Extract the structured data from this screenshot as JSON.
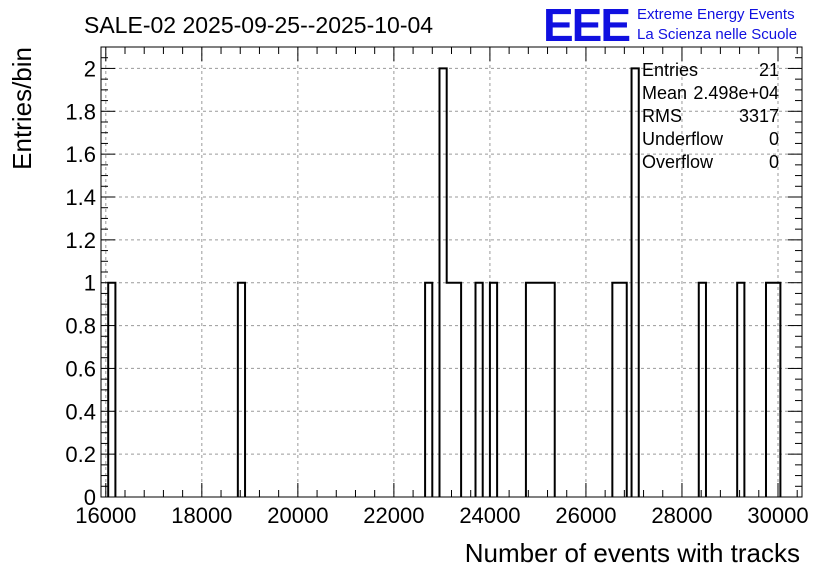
{
  "chart_data": {
    "type": "histogram",
    "title": "SALE-02 2025-09-25--2025-10-04",
    "xlabel": "Number of events with tracks",
    "ylabel": "Entries/bin",
    "xlim": [
      15900,
      30500
    ],
    "ylim": [
      0,
      2.1
    ],
    "grid": true,
    "x_ticks": [
      16000,
      18000,
      20000,
      22000,
      24000,
      26000,
      28000,
      30000
    ],
    "y_ticks": [
      0,
      0.2,
      0.4,
      0.6,
      0.8,
      1,
      1.2,
      1.4,
      1.6,
      1.8,
      2
    ],
    "bins": [
      {
        "x0": 16050,
        "x1": 16200,
        "count": 1
      },
      {
        "x0": 18750,
        "x1": 18900,
        "count": 1
      },
      {
        "x0": 22650,
        "x1": 22800,
        "count": 1
      },
      {
        "x0": 22950,
        "x1": 23100,
        "count": 2
      },
      {
        "x0": 23100,
        "x1": 23250,
        "count": 1
      },
      {
        "x0": 23250,
        "x1": 23400,
        "count": 1
      },
      {
        "x0": 23700,
        "x1": 23850,
        "count": 1
      },
      {
        "x0": 24000,
        "x1": 24150,
        "count": 1
      },
      {
        "x0": 24750,
        "x1": 24900,
        "count": 1
      },
      {
        "x0": 24900,
        "x1": 25050,
        "count": 1
      },
      {
        "x0": 25050,
        "x1": 25200,
        "count": 1
      },
      {
        "x0": 25200,
        "x1": 25350,
        "count": 1
      },
      {
        "x0": 26550,
        "x1": 26700,
        "count": 1
      },
      {
        "x0": 26700,
        "x1": 26850,
        "count": 1
      },
      {
        "x0": 26950,
        "x1": 27100,
        "count": 2
      },
      {
        "x0": 28350,
        "x1": 28500,
        "count": 1
      },
      {
        "x0": 29150,
        "x1": 29300,
        "count": 1
      },
      {
        "x0": 29750,
        "x1": 29900,
        "count": 1
      },
      {
        "x0": 29900,
        "x1": 30050,
        "count": 1
      }
    ],
    "stats": {
      "entries_label": "Entries",
      "entries_value": "21",
      "mean_label": "Mean",
      "mean_value": "2.498e+04",
      "rms_label": "RMS",
      "rms_value": "3317",
      "underflow_label": "Underflow",
      "underflow_value": "0",
      "overflow_label": "Overflow",
      "overflow_value": "0"
    },
    "line_color": "#000000"
  },
  "logo": {
    "text": "EEE",
    "line1": "Extreme Energy Events",
    "line2": "La Scienza nelle Scuole",
    "color": "#1010e0"
  }
}
